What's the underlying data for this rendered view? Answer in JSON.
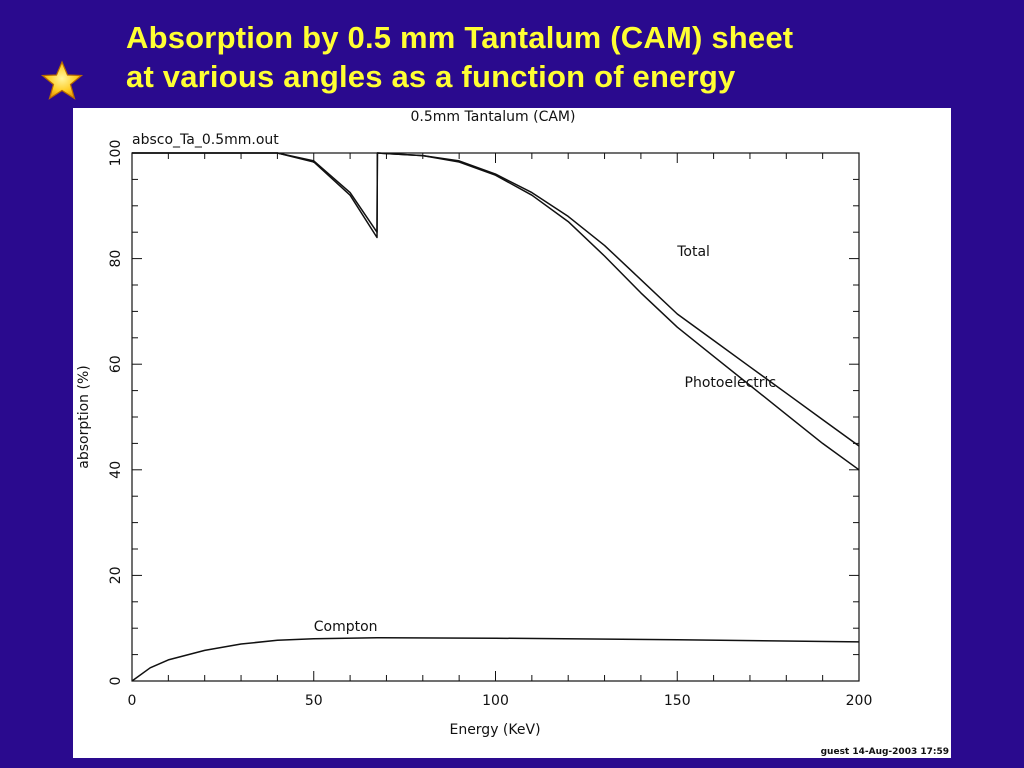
{
  "slide": {
    "title_line1": "Absorption by 0.5 mm Tantalum (CAM) sheet",
    "title_line2": "at various angles as a function of energy",
    "star_icon": "star-icon",
    "background_color": "#2a0a8e",
    "title_color": "#ffff33"
  },
  "chart_data": {
    "type": "line",
    "title": "0.5mm Tantalum (CAM)",
    "subtitle": "absco_Ta_0.5mm.out",
    "xlabel": "Energy (KeV)",
    "ylabel": "absorption (%)",
    "xlim": [
      0,
      200
    ],
    "ylim": [
      0,
      100
    ],
    "x_ticks": [
      "0",
      "50",
      "100",
      "150",
      "200"
    ],
    "y_ticks": [
      "0",
      "20",
      "40",
      "60",
      "80",
      "100"
    ],
    "grid": false,
    "footer": "guest 14-Aug-2003 17:59",
    "series": [
      {
        "name": "Total",
        "points": [
          [
            0,
            100
          ],
          [
            40,
            100
          ],
          [
            50,
            98.5
          ],
          [
            60,
            92.5
          ],
          [
            67.4,
            85
          ],
          [
            67.5,
            100
          ],
          [
            80,
            99.5
          ],
          [
            90,
            98.5
          ],
          [
            100,
            96
          ],
          [
            110,
            92.5
          ],
          [
            120,
            88
          ],
          [
            130,
            82.5
          ],
          [
            140,
            76
          ],
          [
            150,
            69.5
          ],
          [
            160,
            64.5
          ],
          [
            170,
            59.5
          ],
          [
            180,
            54.5
          ],
          [
            190,
            49.5
          ],
          [
            200,
            44.5
          ]
        ]
      },
      {
        "name": "Photoelectric",
        "points": [
          [
            0,
            100
          ],
          [
            40,
            100
          ],
          [
            50,
            98.3
          ],
          [
            60,
            92
          ],
          [
            67.4,
            84
          ],
          [
            67.5,
            100
          ],
          [
            80,
            99.5
          ],
          [
            90,
            98.3
          ],
          [
            100,
            95.8
          ],
          [
            110,
            92
          ],
          [
            120,
            87
          ],
          [
            130,
            80.5
          ],
          [
            140,
            73.5
          ],
          [
            150,
            67
          ],
          [
            160,
            61.5
          ],
          [
            170,
            56
          ],
          [
            180,
            50.5
          ],
          [
            190,
            45
          ],
          [
            200,
            40
          ]
        ]
      },
      {
        "name": "Compton",
        "points": [
          [
            0,
            0
          ],
          [
            5,
            2.5
          ],
          [
            10,
            4
          ],
          [
            20,
            5.8
          ],
          [
            30,
            7
          ],
          [
            40,
            7.7
          ],
          [
            50,
            8
          ],
          [
            67.5,
            8.2
          ],
          [
            100,
            8.1
          ],
          [
            150,
            7.8
          ],
          [
            200,
            7.4
          ]
        ]
      }
    ],
    "series_label_positions": [
      {
        "series": "Total",
        "x": 150,
        "y": 80.5
      },
      {
        "series": "Photoelectric",
        "x": 152,
        "y": 55.7
      },
      {
        "series": "Compton",
        "x": 50,
        "y": 9.5
      }
    ]
  }
}
